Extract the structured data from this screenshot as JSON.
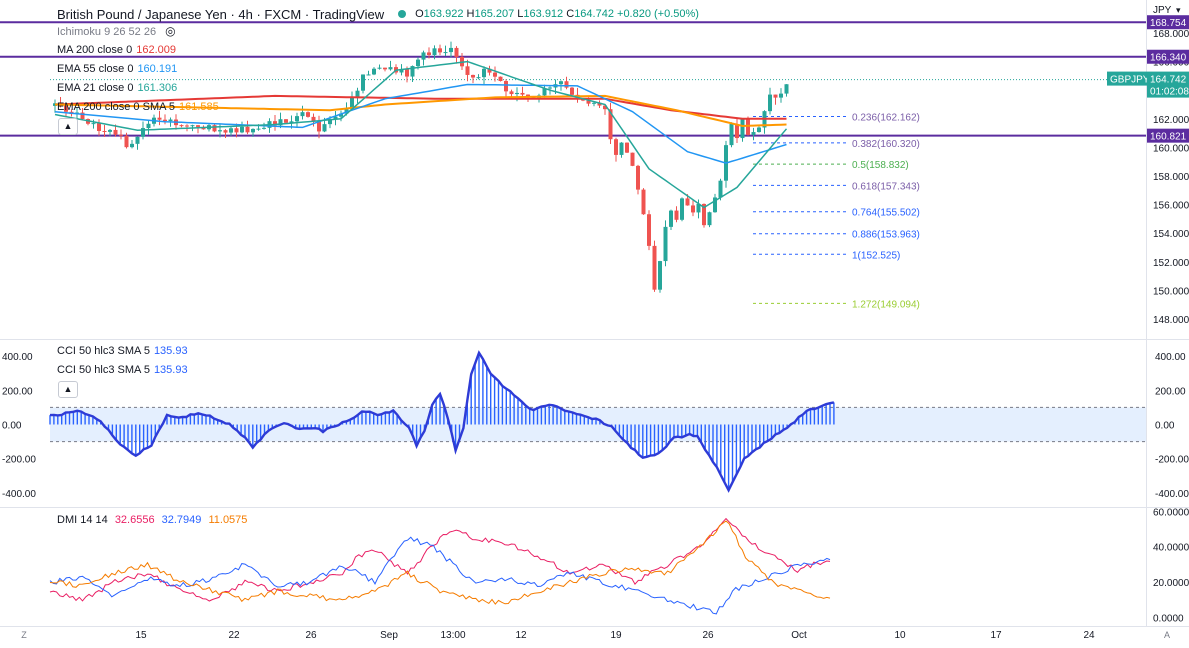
{
  "header": {
    "title": "British Pound / Japanese Yen · 4h · FXCM · TradingView",
    "ohlc": {
      "o": "163.922",
      "h": "165.207",
      "l": "163.912",
      "c": "164.742",
      "chg": "+0.820 (+0.50%)"
    },
    "currency": "JPY"
  },
  "indicators": [
    {
      "name": "Ichimoku 9 26 52 26",
      "value": "",
      "color": "#787b86"
    },
    {
      "name": "MA 200 close 0",
      "value": "162.009",
      "color": "#e53935"
    },
    {
      "name": "EMA 55 close 0",
      "value": "160.191",
      "color": "#2196f3"
    },
    {
      "name": "EMA 21 close 0",
      "value": "161.306",
      "color": "#26a69a"
    },
    {
      "name": "EMA 200 close 0 SMA 5",
      "value": "161.585",
      "color": "#ff9800"
    }
  ],
  "cci_labels": [
    {
      "name": "CCI 50 hlc3 SMA 5",
      "value": "135.93",
      "color": "#2962ff"
    },
    {
      "name": "CCI 50 hlc3 SMA 5",
      "value": "135.93",
      "color": "#2962ff"
    }
  ],
  "dmi_label": {
    "name": "DMI 14 14",
    "values": [
      "32.6556",
      "32.7949",
      "11.0575"
    ],
    "colors": [
      "#e91e63",
      "#2962ff",
      "#f57c00"
    ]
  },
  "colors": {
    "up": "#26a69a",
    "down": "#ef5350",
    "hline": "#5b2c9f",
    "fib": "#2962ff",
    "fib_mid": "#4caf50",
    "fib_ext": "#9acd32"
  },
  "chart_data": {
    "type": "candlestick",
    "symbol": "GBPJPY",
    "timeframe": "4h",
    "x_ticks": [
      "15",
      "22",
      "26",
      "Sep",
      "13:00",
      "12",
      "19",
      "26",
      "Oct",
      "10",
      "17",
      "24"
    ],
    "price_axis": {
      "ticks": [
        148,
        150,
        152,
        154,
        156,
        158,
        160,
        162,
        164,
        166,
        168
      ],
      "range": [
        147.4,
        168.8
      ]
    },
    "price_path": [
      [
        0,
        162.9
      ],
      [
        4,
        162.2
      ],
      [
        8,
        161.4
      ],
      [
        12,
        160.6
      ],
      [
        13,
        160.1
      ],
      [
        15,
        160.9
      ],
      [
        18,
        162.2
      ],
      [
        22,
        161.8
      ],
      [
        26,
        161.6
      ],
      [
        30,
        161.0
      ],
      [
        34,
        161.3
      ],
      [
        38,
        161.5
      ],
      [
        42,
        161.9
      ],
      [
        46,
        162.4
      ],
      [
        47,
        162.0
      ],
      [
        48,
        161.4
      ],
      [
        50,
        161.9
      ],
      [
        52,
        162.4
      ],
      [
        54,
        163.4
      ],
      [
        56,
        165.0
      ],
      [
        60,
        165.6
      ],
      [
        62,
        165.5
      ],
      [
        64,
        165.2
      ],
      [
        66,
        166.3
      ],
      [
        68,
        166.5
      ],
      [
        70,
        166.8
      ],
      [
        72,
        166.7
      ],
      [
        74,
        165.9
      ],
      [
        76,
        164.6
      ],
      [
        78,
        165.2
      ],
      [
        80,
        164.8
      ],
      [
        82,
        164.2
      ],
      [
        84,
        163.6
      ],
      [
        86,
        163.4
      ],
      [
        88,
        163.5
      ],
      [
        90,
        164.2
      ],
      [
        92,
        164.4
      ],
      [
        94,
        163.6
      ],
      [
        96,
        163.4
      ],
      [
        98,
        163.0
      ],
      [
        100,
        162.4
      ],
      [
        101,
        160.5
      ],
      [
        102,
        159.6
      ],
      [
        103,
        160.2
      ],
      [
        104,
        159.7
      ],
      [
        105,
        158.5
      ],
      [
        106,
        156.8
      ],
      [
        107,
        155.2
      ],
      [
        108,
        153.0
      ],
      [
        109,
        150.0
      ],
      [
        110,
        152.2
      ],
      [
        111,
        154.6
      ],
      [
        112,
        155.8
      ],
      [
        113,
        155.0
      ],
      [
        114,
        156.6
      ],
      [
        115,
        155.8
      ],
      [
        116,
        155.3
      ],
      [
        117,
        156.0
      ],
      [
        118,
        154.4
      ],
      [
        119,
        155.5
      ],
      [
        120,
        156.3
      ],
      [
        121,
        157.8
      ],
      [
        122,
        160.0
      ],
      [
        123,
        161.9
      ],
      [
        124,
        160.7
      ],
      [
        125,
        162.1
      ],
      [
        126,
        160.6
      ],
      [
        127,
        161.2
      ],
      [
        128,
        161.6
      ],
      [
        129,
        162.4
      ],
      [
        130,
        163.8
      ],
      [
        131,
        163.2
      ],
      [
        132,
        164.0
      ],
      [
        133,
        164.7
      ]
    ],
    "horizontal_levels": [
      {
        "label": "168.754",
        "price": 168.754
      },
      {
        "label": "166.340",
        "price": 166.34
      },
      {
        "label": "160.821",
        "price": 160.821
      }
    ],
    "last_price": {
      "symbol": "GBPJPY",
      "price": "164.742",
      "countdown": "01:02:08"
    },
    "fibonacci": [
      {
        "label": "0.236(162.162)",
        "price": 162.162
      },
      {
        "label": "0.382(160.320)",
        "price": 160.32
      },
      {
        "label": "0.5(158.832)",
        "price": 158.832
      },
      {
        "label": "0.618(157.343)",
        "price": 157.343
      },
      {
        "label": "0.764(155.502)",
        "price": 155.502
      },
      {
        "label": "0.886(153.963)",
        "price": 153.963
      },
      {
        "label": "1(152.525)",
        "price": 152.525
      },
      {
        "label": "1.272(149.094)",
        "price": 149.094
      }
    ],
    "ma_series": [
      {
        "name": "MA 200",
        "color": "#e53935",
        "points": [
          [
            0,
            163.0
          ],
          [
            40,
            163.6
          ],
          [
            70,
            163.4
          ],
          [
            100,
            163.4
          ],
          [
            112,
            162.6
          ],
          [
            125,
            162.0
          ],
          [
            133,
            162.0
          ]
        ]
      },
      {
        "name": "EMA 200 SMA 5",
        "color": "#ff9800",
        "points": [
          [
            0,
            163.0
          ],
          [
            50,
            162.6
          ],
          [
            60,
            163.0
          ],
          [
            80,
            163.5
          ],
          [
            100,
            163.6
          ],
          [
            113,
            162.6
          ],
          [
            125,
            161.5
          ],
          [
            133,
            161.6
          ]
        ]
      },
      {
        "name": "EMA 55",
        "color": "#2196f3",
        "points": [
          [
            0,
            162.5
          ],
          [
            20,
            161.8
          ],
          [
            45,
            161.4
          ],
          [
            60,
            163.4
          ],
          [
            75,
            164.4
          ],
          [
            95,
            164.3
          ],
          [
            105,
            162.5
          ],
          [
            115,
            159.7
          ],
          [
            122,
            158.9
          ],
          [
            133,
            160.2
          ]
        ]
      },
      {
        "name": "EMA 21",
        "color": "#26a69a",
        "points": [
          [
            0,
            162.3
          ],
          [
            15,
            161.2
          ],
          [
            40,
            161.6
          ],
          [
            52,
            162.0
          ],
          [
            62,
            165.4
          ],
          [
            75,
            166.0
          ],
          [
            90,
            164.0
          ],
          [
            100,
            163.0
          ],
          [
            108,
            158.5
          ],
          [
            118,
            155.8
          ],
          [
            124,
            157.2
          ],
          [
            133,
            161.3
          ]
        ]
      }
    ],
    "cci": {
      "axis_ticks": [
        400,
        200,
        0,
        -200,
        -400
      ],
      "bands": [
        100,
        -100
      ],
      "points": [
        [
          0,
          50
        ],
        [
          8,
          80
        ],
        [
          13,
          20
        ],
        [
          18,
          -120
        ],
        [
          22,
          -180
        ],
        [
          26,
          -120
        ],
        [
          30,
          50
        ],
        [
          34,
          40
        ],
        [
          38,
          70
        ],
        [
          42,
          40
        ],
        [
          46,
          0
        ],
        [
          50,
          -80
        ],
        [
          52,
          -130
        ],
        [
          56,
          -40
        ],
        [
          60,
          10
        ],
        [
          64,
          -30
        ],
        [
          68,
          -20
        ],
        [
          70,
          -40
        ],
        [
          74,
          0
        ],
        [
          78,
          40
        ],
        [
          80,
          80
        ],
        [
          84,
          60
        ],
        [
          88,
          80
        ],
        [
          92,
          -20
        ],
        [
          94,
          -120
        ],
        [
          96,
          -40
        ],
        [
          98,
          110
        ],
        [
          100,
          180
        ],
        [
          102,
          40
        ],
        [
          104,
          -150
        ],
        [
          106,
          -20
        ],
        [
          108,
          300
        ],
        [
          110,
          420
        ],
        [
          113,
          300
        ],
        [
          116,
          230
        ],
        [
          120,
          150
        ],
        [
          124,
          80
        ],
        [
          128,
          120
        ],
        [
          132,
          80
        ],
        [
          136,
          60
        ],
        [
          140,
          30
        ],
        [
          144,
          -10
        ],
        [
          148,
          -110
        ],
        [
          152,
          -200
        ],
        [
          156,
          -170
        ],
        [
          160,
          -80
        ],
        [
          164,
          -60
        ],
        [
          166,
          -70
        ],
        [
          168,
          -150
        ],
        [
          172,
          -290
        ],
        [
          174,
          -380
        ],
        [
          176,
          -290
        ],
        [
          178,
          -200
        ],
        [
          182,
          -130
        ],
        [
          186,
          -60
        ],
        [
          190,
          0
        ],
        [
          194,
          80
        ],
        [
          198,
          110
        ],
        [
          201,
          135
        ]
      ]
    },
    "dmi": {
      "axis_ticks": [
        60,
        40,
        20,
        0
      ],
      "series": [
        {
          "name": "+DI",
          "color": "#e91e63",
          "points": [
            [
              0,
              15
            ],
            [
              10,
              10
            ],
            [
              20,
              20
            ],
            [
              30,
              25
            ],
            [
              40,
              15
            ],
            [
              50,
              10
            ],
            [
              60,
              20
            ],
            [
              70,
              15
            ],
            [
              80,
              20
            ],
            [
              90,
              25
            ],
            [
              95,
              35
            ],
            [
              100,
              38
            ],
            [
              110,
              25
            ],
            [
              120,
              45
            ],
            [
              125,
              50
            ],
            [
              130,
              45
            ],
            [
              140,
              42
            ],
            [
              150,
              35
            ],
            [
              160,
              25
            ],
            [
              170,
              30
            ],
            [
              180,
              20
            ],
            [
              190,
              30
            ],
            [
              200,
              40
            ],
            [
              208,
              55
            ],
            [
              214,
              45
            ],
            [
              222,
              35
            ],
            [
              230,
              27
            ],
            [
              240,
              33
            ]
          ]
        },
        {
          "name": "-DI",
          "color": "#2962ff",
          "points": [
            [
              0,
              20
            ],
            [
              10,
              22
            ],
            [
              20,
              12
            ],
            [
              30,
              22
            ],
            [
              40,
              18
            ],
            [
              50,
              22
            ],
            [
              60,
              30
            ],
            [
              70,
              18
            ],
            [
              80,
              20
            ],
            [
              90,
              30
            ],
            [
              100,
              20
            ],
            [
              110,
              45
            ],
            [
              118,
              40
            ],
            [
              124,
              30
            ],
            [
              130,
              20
            ],
            [
              140,
              22
            ],
            [
              150,
              18
            ],
            [
              160,
              25
            ],
            [
              170,
              20
            ],
            [
              180,
              15
            ],
            [
              190,
              10
            ],
            [
              200,
              5
            ],
            [
              205,
              2
            ],
            [
              210,
              15
            ],
            [
              220,
              22
            ],
            [
              230,
              29
            ],
            [
              240,
              33
            ]
          ]
        },
        {
          "name": "ADX",
          "color": "#f57c00",
          "points": [
            [
              0,
              20
            ],
            [
              10,
              18
            ],
            [
              20,
              25
            ],
            [
              30,
              30
            ],
            [
              40,
              20
            ],
            [
              50,
              15
            ],
            [
              60,
              10
            ],
            [
              70,
              15
            ],
            [
              80,
              12
            ],
            [
              90,
              10
            ],
            [
              100,
              15
            ],
            [
              110,
              25
            ],
            [
              120,
              15
            ],
            [
              130,
              10
            ],
            [
              140,
              8
            ],
            [
              150,
              15
            ],
            [
              160,
              20
            ],
            [
              170,
              25
            ],
            [
              180,
              28
            ],
            [
              190,
              25
            ],
            [
              200,
              40
            ],
            [
              208,
              55
            ],
            [
              214,
              35
            ],
            [
              222,
              20
            ],
            [
              230,
              15
            ],
            [
              240,
              11
            ]
          ]
        }
      ]
    }
  }
}
